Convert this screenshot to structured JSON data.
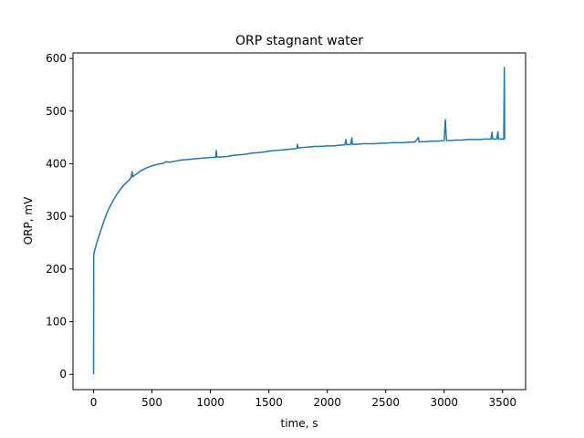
{
  "chart_data": {
    "type": "line",
    "title": "ORP stagnant water",
    "xlabel": "time, s",
    "ylabel": "ORP, mV",
    "xlim": [
      -176,
      3697
    ],
    "ylim": [
      -29.1,
      610.5
    ],
    "x_ticks": [
      0,
      500,
      1000,
      1500,
      2000,
      2500,
      3000,
      3500
    ],
    "y_ticks": [
      0,
      100,
      200,
      300,
      400,
      500,
      600
    ],
    "grid": false,
    "legend": "none",
    "colors": {
      "line": "#1f77b4",
      "axes": "#000000",
      "background": "#ffffff"
    },
    "series": [
      {
        "points": [
          [
            0,
            0
          ],
          [
            1,
            225
          ],
          [
            5,
            232
          ],
          [
            15,
            240
          ],
          [
            30,
            252
          ],
          [
            50,
            265
          ],
          [
            75,
            282
          ],
          [
            100,
            298
          ],
          [
            125,
            312
          ],
          [
            150,
            323
          ],
          [
            175,
            333
          ],
          [
            200,
            342
          ],
          [
            225,
            350
          ],
          [
            250,
            357
          ],
          [
            275,
            363
          ],
          [
            300,
            368
          ],
          [
            320,
            373
          ],
          [
            330,
            385
          ],
          [
            335,
            375
          ],
          [
            350,
            378
          ],
          [
            375,
            382
          ],
          [
            400,
            386
          ],
          [
            425,
            389
          ],
          [
            450,
            392
          ],
          [
            475,
            394
          ],
          [
            500,
            396
          ],
          [
            550,
            399
          ],
          [
            600,
            401
          ],
          [
            620,
            404
          ],
          [
            650,
            403
          ],
          [
            700,
            405
          ],
          [
            750,
            407
          ],
          [
            800,
            408
          ],
          [
            850,
            409
          ],
          [
            900,
            410
          ],
          [
            950,
            411
          ],
          [
            1000,
            412
          ],
          [
            1045,
            412
          ],
          [
            1050,
            425
          ],
          [
            1055,
            413
          ],
          [
            1100,
            413
          ],
          [
            1150,
            414
          ],
          [
            1200,
            416
          ],
          [
            1250,
            417
          ],
          [
            1300,
            418
          ],
          [
            1350,
            420
          ],
          [
            1400,
            421
          ],
          [
            1450,
            422
          ],
          [
            1500,
            424
          ],
          [
            1550,
            425
          ],
          [
            1600,
            426
          ],
          [
            1650,
            427
          ],
          [
            1700,
            428
          ],
          [
            1740,
            429
          ],
          [
            1745,
            437
          ],
          [
            1750,
            430
          ],
          [
            1800,
            431
          ],
          [
            1850,
            432
          ],
          [
            1900,
            433
          ],
          [
            1950,
            433
          ],
          [
            2000,
            434
          ],
          [
            2050,
            434
          ],
          [
            2100,
            435
          ],
          [
            2150,
            436
          ],
          [
            2160,
            446
          ],
          [
            2165,
            436
          ],
          [
            2200,
            437
          ],
          [
            2210,
            449
          ],
          [
            2215,
            437
          ],
          [
            2250,
            437
          ],
          [
            2300,
            438
          ],
          [
            2350,
            438
          ],
          [
            2400,
            438
          ],
          [
            2450,
            439
          ],
          [
            2500,
            439
          ],
          [
            2550,
            440
          ],
          [
            2600,
            440
          ],
          [
            2650,
            440
          ],
          [
            2700,
            441
          ],
          [
            2750,
            441
          ],
          [
            2780,
            450
          ],
          [
            2785,
            441
          ],
          [
            2800,
            442
          ],
          [
            2850,
            442
          ],
          [
            2900,
            443
          ],
          [
            2950,
            443
          ],
          [
            3000,
            444
          ],
          [
            3010,
            484
          ],
          [
            3020,
            444
          ],
          [
            3050,
            444
          ],
          [
            3100,
            445
          ],
          [
            3150,
            445
          ],
          [
            3200,
            446
          ],
          [
            3250,
            446
          ],
          [
            3300,
            446
          ],
          [
            3350,
            447
          ],
          [
            3400,
            447
          ],
          [
            3410,
            460
          ],
          [
            3415,
            447
          ],
          [
            3450,
            447
          ],
          [
            3460,
            461
          ],
          [
            3465,
            447
          ],
          [
            3500,
            447
          ],
          [
            3510,
            446
          ],
          [
            3515,
            583
          ],
          [
            3518,
            447
          ]
        ]
      }
    ]
  }
}
